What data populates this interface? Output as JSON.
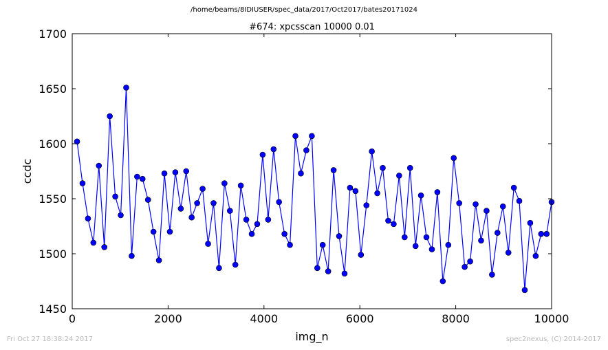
{
  "supertitle": "/home/beams/8IDIUSER/spec_data/2017/Oct2017/bates20171024",
  "footer": {
    "timestamp": "Fri Oct 27 18:38:24 2017",
    "credit": "spec2nexus, (C) 2014-2017"
  },
  "colors": {
    "series": "#0000ff",
    "axis": "#000000",
    "footer": "#b8b8b8"
  },
  "chart_data": {
    "type": "line",
    "title": "#674: xpcsscan 10000 0.01",
    "xlabel": "img_n",
    "ylabel": "ccdc",
    "xlim": [
      0,
      10000
    ],
    "ylim": [
      1450,
      1700
    ],
    "xticks": [
      0,
      2000,
      4000,
      6000,
      8000,
      10000
    ],
    "yticks": [
      1450,
      1500,
      1550,
      1600,
      1650,
      1700
    ],
    "xtick_labels": [
      "0",
      "2000",
      "4000",
      "6000",
      "8000",
      "10000"
    ],
    "ytick_labels": [
      "1450",
      "1500",
      "1550",
      "1600",
      "1650",
      "1700"
    ],
    "grid": false,
    "marker": "circle",
    "series": [
      {
        "x": [
          101,
          215,
          329,
          442,
          556,
          670,
          784,
          898,
          1012,
          1126,
          1240,
          1354,
          1467,
          1581,
          1695,
          1809,
          1923,
          2037,
          2151,
          2265,
          2378,
          2492,
          2606,
          2720,
          2834,
          2948,
          3062,
          3176,
          3290,
          3403,
          3517,
          3631,
          3745,
          3859,
          3973,
          4087,
          4201,
          4314,
          4428,
          4542,
          4656,
          4770,
          4884,
          4998,
          5112,
          5225,
          5339,
          5453,
          5567,
          5681,
          5795,
          5909,
          6023,
          6137,
          6250,
          6364,
          6478,
          6592,
          6706,
          6820,
          6934,
          7048,
          7162,
          7275,
          7389,
          7503,
          7617,
          7731,
          7845,
          7959,
          8073,
          8187,
          8301,
          8415,
          8529,
          8643,
          8757,
          8871,
          8985,
          9099,
          9213,
          9326,
          9440,
          9554,
          9668,
          9782,
          9896,
          10000
        ],
        "y": [
          1602,
          1564,
          1532,
          1510,
          1580,
          1506,
          1625,
          1552,
          1535,
          1651,
          1498,
          1570,
          1568,
          1549,
          1520,
          1494,
          1573,
          1520,
          1574,
          1541,
          1575,
          1533,
          1546,
          1559,
          1509,
          1546,
          1487,
          1564,
          1539,
          1490,
          1562,
          1531,
          1518,
          1527,
          1590,
          1531,
          1595,
          1547,
          1518,
          1508,
          1607,
          1573,
          1594,
          1607,
          1487,
          1508,
          1484,
          1576,
          1516,
          1482,
          1560,
          1557,
          1499,
          1544,
          1593,
          1555,
          1578,
          1530,
          1527,
          1571,
          1515,
          1578,
          1507,
          1553,
          1515,
          1504,
          1556,
          1475,
          1508,
          1587,
          1546,
          1488,
          1493,
          1545,
          1512,
          1539,
          1481,
          1519,
          1543,
          1501,
          1560,
          1548,
          1467,
          1528,
          1498,
          1518,
          1518,
          1547
        ]
      }
    ]
  }
}
